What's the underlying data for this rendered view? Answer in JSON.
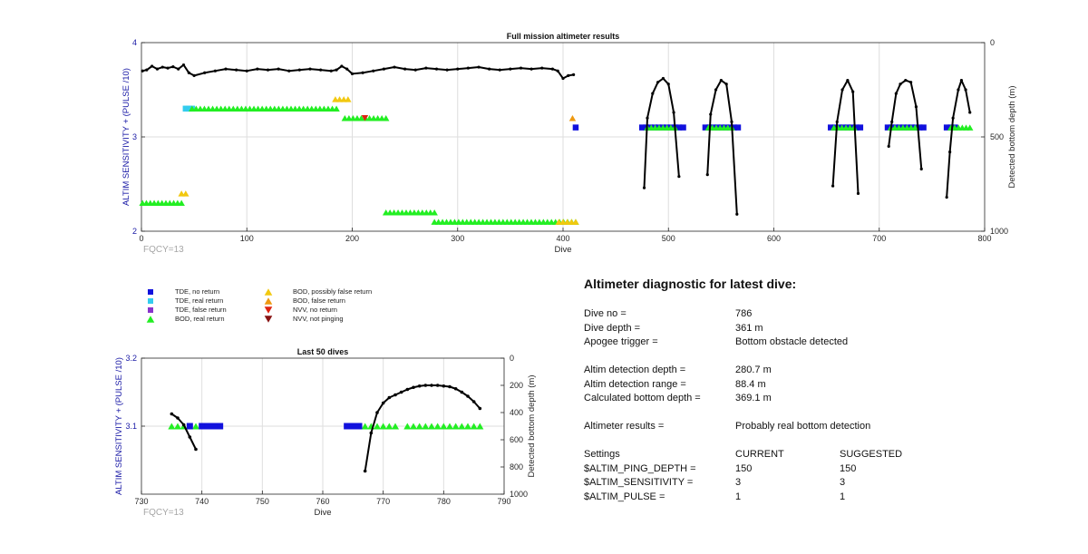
{
  "chart_data": [
    {
      "type": "scatter",
      "title": "Full mission altimeter results",
      "xlabel": "Dive",
      "ylabel_left": "ALTIM SENSITIVITY + (PULSE /10)",
      "ylabel_right": "Detected bottom depth (m)",
      "annotation": "FQCY=13",
      "xlim": [
        0,
        800
      ],
      "ylim_left": [
        2,
        4
      ],
      "ylim_right": [
        1000,
        0
      ],
      "right_axis_reversed": true,
      "x_ticks": [
        "0",
        "100",
        "200",
        "300",
        "400",
        "500",
        "600",
        "700",
        "800"
      ],
      "y_ticks_left": [
        "2",
        "3",
        "4"
      ],
      "y_ticks_right": [
        "0",
        "500",
        "1000"
      ],
      "grid": true,
      "marker_bands": [
        {
          "legend": "TDE, real return",
          "x_from": 42,
          "x_to": 48,
          "y": 3.3
        },
        {
          "legend": "BOD, real return",
          "x_from": 1,
          "x_to": 38,
          "y": 2.3
        },
        {
          "legend": "BOD, possibly false return",
          "x_from": 38,
          "x_to": 42,
          "y": 2.4
        },
        {
          "legend": "BOD, real return",
          "x_from": 48,
          "x_to": 185,
          "y": 3.3
        },
        {
          "legend": "BOD, possibly false return",
          "x_from": 184,
          "x_to": 196,
          "y": 3.4
        },
        {
          "legend": "BOD, real return",
          "x_from": 193,
          "x_to": 232,
          "y": 3.2
        },
        {
          "legend": "BOD, real return",
          "x_from": 232,
          "x_to": 278,
          "y": 2.2
        },
        {
          "legend": "BOD, real return",
          "x_from": 278,
          "x_to": 412,
          "y": 2.1
        },
        {
          "legend": "BOD, possibly false return",
          "x_from": 396,
          "x_to": 412,
          "y": 2.1
        },
        {
          "legend": "NVV, no return",
          "x_from": 212,
          "x_to": 212,
          "y": 3.2
        },
        {
          "legend": "BOD, false return",
          "x_from": 409,
          "x_to": 409,
          "y": 3.2
        },
        {
          "legend": "TDE, no return",
          "x_from": 412,
          "x_to": 412,
          "y": 3.1
        },
        {
          "legend": "TDE, no return",
          "x_from": 475,
          "x_to": 514,
          "y": 3.1
        },
        {
          "legend": "BOD, real return",
          "x_from": 480,
          "x_to": 506,
          "y": 3.1
        },
        {
          "legend": "TDE, no return",
          "x_from": 535,
          "x_to": 566,
          "y": 3.1
        },
        {
          "legend": "BOD, real return",
          "x_from": 538,
          "x_to": 560,
          "y": 3.1
        },
        {
          "legend": "TDE, no return",
          "x_from": 654,
          "x_to": 682,
          "y": 3.1
        },
        {
          "legend": "BOD, real return",
          "x_from": 657,
          "x_to": 676,
          "y": 3.1
        },
        {
          "legend": "TDE, no return",
          "x_from": 708,
          "x_to": 742,
          "y": 3.1
        },
        {
          "legend": "BOD, real return",
          "x_from": 711,
          "x_to": 734,
          "y": 3.1
        },
        {
          "legend": "TDE, no return",
          "x_from": 764,
          "x_to": 772,
          "y": 3.1
        },
        {
          "legend": "BOD, real return",
          "x_from": 768,
          "x_to": 786,
          "y": 3.1
        }
      ],
      "bottom_depth_series": [
        {
          "x": [
            1,
            5,
            10,
            15,
            20,
            25,
            30,
            35,
            40,
            45,
            50,
            60,
            70,
            80,
            90,
            100,
            110,
            120,
            130,
            140,
            150,
            160,
            170,
            180,
            185,
            190,
            195,
            200,
            210,
            220,
            230,
            240,
            250,
            260,
            270,
            280,
            290,
            300,
            310,
            320,
            330,
            340,
            350,
            360,
            370,
            380,
            390,
            395,
            400,
            405,
            410
          ],
          "depth_m": [
            150,
            145,
            125,
            140,
            130,
            135,
            128,
            140,
            118,
            160,
            175,
            160,
            150,
            140,
            145,
            150,
            140,
            145,
            140,
            150,
            145,
            140,
            145,
            150,
            145,
            125,
            140,
            165,
            160,
            150,
            140,
            130,
            140,
            145,
            135,
            140,
            145,
            140,
            135,
            130,
            140,
            145,
            140,
            135,
            140,
            135,
            140,
            150,
            190,
            175,
            170
          ]
        },
        {
          "x": [
            477,
            480,
            485,
            490,
            495,
            500,
            505,
            510
          ],
          "depth_m": [
            770,
            400,
            270,
            210,
            190,
            220,
            370,
            710
          ]
        },
        {
          "x": [
            537,
            540,
            545,
            550,
            555,
            560,
            565
          ],
          "depth_m": [
            700,
            380,
            250,
            200,
            220,
            420,
            910
          ]
        },
        {
          "x": [
            656,
            660,
            665,
            670,
            675,
            680
          ],
          "depth_m": [
            760,
            420,
            250,
            200,
            260,
            800
          ]
        },
        {
          "x": [
            709,
            712,
            716,
            720,
            725,
            730,
            735,
            740
          ],
          "depth_m": [
            550,
            420,
            270,
            220,
            200,
            210,
            340,
            670
          ]
        },
        {
          "x": [
            764,
            767,
            770,
            775,
            778,
            782,
            786
          ],
          "depth_m": [
            820,
            580,
            400,
            250,
            200,
            250,
            370
          ]
        }
      ]
    },
    {
      "type": "scatter",
      "title": "Last 50 dives",
      "xlabel": "Dive",
      "ylabel_left": "ALTIM SENSITIVITY + (PULSE /10)",
      "ylabel_right": "Detected bottom depth (m)",
      "annotation": "FQCY=13",
      "xlim": [
        730,
        790
      ],
      "ylim_left": [
        3.0,
        3.2
      ],
      "ylim_right": [
        1000,
        0
      ],
      "right_axis_reversed": true,
      "x_ticks": [
        "730",
        "740",
        "750",
        "760",
        "770",
        "780",
        "790"
      ],
      "y_ticks_left": [
        "3.1",
        "3.2"
      ],
      "y_ticks_right": [
        "0",
        "200",
        "400",
        "600",
        "800",
        "1000"
      ],
      "grid": true,
      "markers": [
        {
          "legend": "BOD, real return",
          "x": [
            735,
            736,
            737,
            739,
            767,
            768,
            769,
            770,
            771,
            772,
            774,
            775,
            776,
            777,
            778,
            779,
            780,
            781,
            782,
            783,
            784,
            785,
            786
          ],
          "y": 3.1
        },
        {
          "legend": "TDE, no return",
          "x": [
            738,
            740,
            741,
            742,
            743,
            764,
            765,
            766
          ],
          "y": 3.1
        }
      ],
      "bottom_depth_series": [
        {
          "x": [
            735,
            736,
            737,
            738,
            739
          ],
          "depth_m": [
            410,
            440,
            490,
            580,
            670
          ]
        },
        {
          "x": [
            767,
            768,
            769,
            770,
            771,
            772,
            773,
            774,
            775,
            776,
            777,
            778,
            779,
            780,
            781,
            782,
            783,
            784,
            785,
            786
          ],
          "depth_m": [
            830,
            550,
            400,
            330,
            290,
            270,
            250,
            230,
            215,
            205,
            200,
            200,
            200,
            205,
            210,
            225,
            250,
            280,
            320,
            370
          ]
        }
      ]
    }
  ],
  "legend": [
    {
      "label": "TDE, no return",
      "color": "#1111dd",
      "shape": "square"
    },
    {
      "label": "TDE, real return",
      "color": "#33ccee",
      "shape": "square"
    },
    {
      "label": "TDE, false return",
      "color": "#8833cc",
      "shape": "square"
    },
    {
      "label": "BOD, real return",
      "color": "#22ee22",
      "shape": "triangle-up"
    },
    {
      "label": "BOD, possibly false return",
      "color": "#f2c80f",
      "shape": "triangle-up"
    },
    {
      "label": "BOD, false return",
      "color": "#ee9911",
      "shape": "triangle-up"
    },
    {
      "label": "NVV, no return",
      "color": "#dd2211",
      "shape": "triangle-down"
    },
    {
      "label": "NVV, not pinging",
      "color": "#881111",
      "shape": "triangle-down"
    }
  ],
  "diagnostic": {
    "title": "Altimeter diagnostic for latest dive:",
    "rows": [
      [
        "Dive no =",
        "786"
      ],
      [
        "Dive depth =",
        "361 m"
      ],
      [
        "Apogee trigger =",
        "Bottom obstacle detected"
      ],
      null,
      [
        "Altim detection depth =",
        "280.7 m"
      ],
      [
        "Altim detection range =",
        "88.4 m"
      ],
      [
        "Calculated bottom depth =",
        "369.1 m"
      ],
      null,
      [
        "Altimeter results =",
        "Probably real bottom detection"
      ],
      null,
      [
        "Settings",
        "CURRENT",
        "SUGGESTED"
      ],
      [
        "$ALTIM_PING_DEPTH =",
        "150",
        "150"
      ],
      [
        "$ALTIM_SENSITIVITY =",
        "3",
        "3"
      ],
      [
        "$ALTIM_PULSE =",
        "1",
        "1"
      ]
    ]
  },
  "colors": {
    "axis": "#262626",
    "grid": "#dedede",
    "left_axis_label": "#1a1aa6",
    "annotation": "#a6a6a6",
    "depth_line": "#000000"
  }
}
